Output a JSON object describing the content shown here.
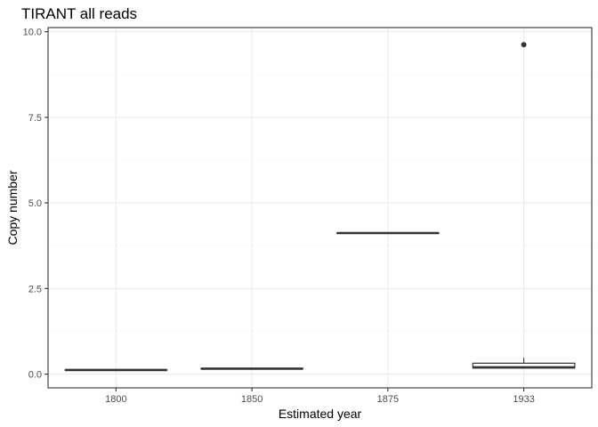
{
  "chart_data": {
    "type": "box",
    "title": "TIRANT all reads",
    "xlabel": "Estimated year",
    "ylabel": "Copy number",
    "categories": [
      "1800",
      "1850",
      "1875",
      "1933"
    ],
    "ylim": [
      -0.4,
      10.12
    ],
    "y_ticks": [
      0.0,
      2.5,
      5.0,
      7.5,
      10.0
    ],
    "y_tick_labels": [
      "0.0",
      "2.5",
      "5.0",
      "7.5",
      "10.0"
    ],
    "grid": true,
    "legend": "none",
    "boxes": [
      {
        "category": "1800",
        "min": 0.12,
        "q1": 0.12,
        "median": 0.12,
        "q3": 0.12,
        "max": 0.12,
        "outliers": []
      },
      {
        "category": "1850",
        "min": 0.16,
        "q1": 0.16,
        "median": 0.16,
        "q3": 0.16,
        "max": 0.16,
        "outliers": []
      },
      {
        "category": "1875",
        "min": 4.12,
        "q1": 4.12,
        "median": 4.12,
        "q3": 4.12,
        "max": 4.12,
        "outliers": []
      },
      {
        "category": "1933",
        "min": 0.18,
        "q1": 0.18,
        "median": 0.2,
        "q3": 0.32,
        "max": 0.48,
        "outliers": [
          9.62
        ]
      }
    ]
  }
}
